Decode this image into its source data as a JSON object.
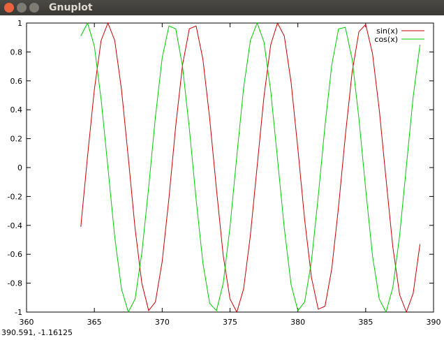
{
  "window": {
    "title": "Gnuplot",
    "status": "390.591, -1.16125"
  },
  "chart_data": {
    "type": "line",
    "x": [
      364,
      364.5,
      365,
      365.5,
      366,
      366.5,
      367,
      367.5,
      368,
      368.5,
      369,
      369.5,
      370,
      370.5,
      371,
      371.5,
      372,
      372.5,
      373,
      373.5,
      374,
      374.5,
      375,
      375.5,
      376,
      376.5,
      377,
      377.5,
      378,
      378.5,
      379,
      379.5,
      380,
      380.5,
      381,
      381.5,
      382,
      382.5,
      383,
      383.5,
      384,
      384.5,
      385,
      385.5,
      386,
      386.5,
      387,
      387.5,
      388,
      388.5,
      389
    ],
    "series": [
      {
        "name": "sin(x)",
        "color": "#cc0000",
        "values": [
          -0.41,
          0.08,
          0.54,
          0.88,
          1.0,
          0.88,
          0.54,
          0.07,
          -0.42,
          -0.8,
          -0.99,
          -0.93,
          -0.65,
          -0.21,
          0.29,
          0.71,
          0.96,
          0.98,
          0.75,
          0.34,
          -0.15,
          -0.61,
          -0.91,
          -1.0,
          -0.84,
          -0.47,
          0.01,
          0.49,
          0.85,
          1.0,
          0.91,
          0.59,
          0.13,
          -0.36,
          -0.76,
          -0.98,
          -0.96,
          -0.7,
          -0.27,
          0.22,
          0.66,
          0.94,
          0.99,
          0.79,
          0.4,
          -0.08,
          -0.55,
          -0.88,
          -1.0,
          -0.87,
          -0.53
        ]
      },
      {
        "name": "cos(x)",
        "color": "#00cc00",
        "values": [
          0.91,
          1.0,
          0.84,
          0.47,
          0.0,
          -0.48,
          -0.84,
          -1.0,
          -0.91,
          -0.59,
          -0.14,
          0.35,
          0.76,
          0.98,
          0.96,
          0.7,
          0.27,
          -0.22,
          -0.66,
          -0.94,
          -0.99,
          -0.8,
          -0.41,
          0.08,
          0.55,
          0.88,
          1.0,
          0.87,
          0.53,
          0.06,
          -0.42,
          -0.81,
          -0.99,
          -0.93,
          -0.65,
          -0.2,
          0.29,
          0.71,
          0.96,
          0.97,
          0.75,
          0.34,
          -0.15,
          -0.61,
          -0.91,
          -1.0,
          -0.83,
          -0.47,
          0.01,
          0.49,
          0.85
        ]
      }
    ],
    "xlim": [
      360,
      390
    ],
    "xticks": [
      360,
      365,
      370,
      375,
      380,
      385,
      390
    ],
    "ylim": [
      -1,
      1
    ],
    "yticks": [
      -1,
      -0.8,
      -0.6,
      -0.4,
      -0.2,
      0,
      0.2,
      0.4,
      0.6,
      0.8,
      1
    ],
    "legend": "top-right"
  }
}
